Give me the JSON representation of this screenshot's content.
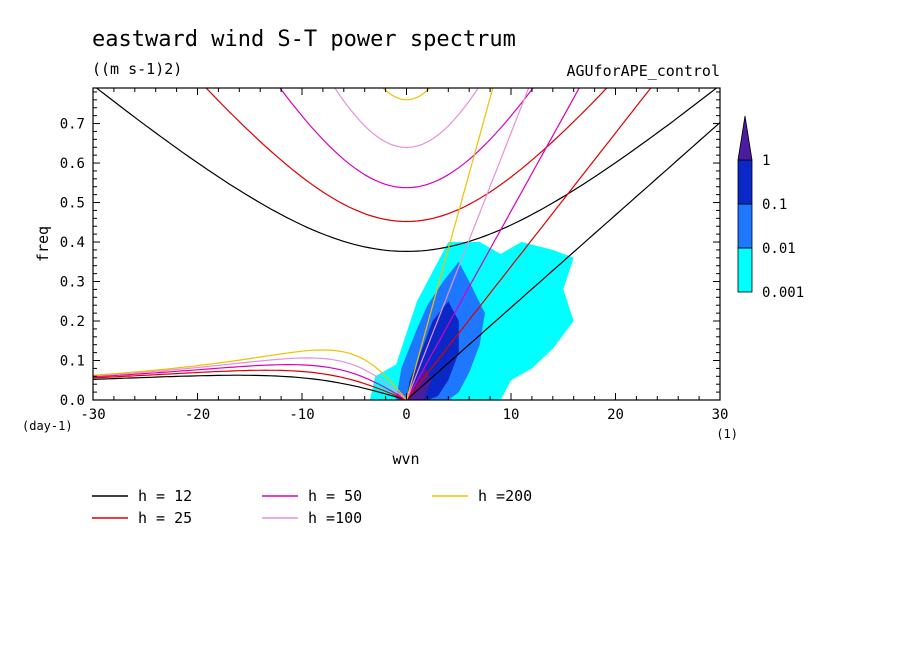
{
  "chart_data": {
    "type": "heatmap",
    "title": "eastward wind S-T power spectrum",
    "units_label": "((m s-1)2)",
    "experiment": "AGUforAPE_control",
    "xlabel": "wvn",
    "ylabel": "freq",
    "x_unit": "(1)",
    "y_unit": "(day-1)",
    "xlim": [
      -30,
      30
    ],
    "ylim": [
      0.0,
      0.79
    ],
    "xticks": [
      "-30",
      "-20",
      "-10",
      "0",
      "10",
      "20",
      "30"
    ],
    "xtick_values": [
      -30,
      -20,
      -10,
      0,
      10,
      20,
      30
    ],
    "yticks": [
      "0.0",
      "0.1",
      "0.2",
      "0.3",
      "0.4",
      "0.5",
      "0.6",
      "0.7"
    ],
    "ytick_values": [
      0.0,
      0.1,
      0.2,
      0.3,
      0.4,
      0.5,
      0.6,
      0.7
    ],
    "colorbar": {
      "levels": [
        "0.001",
        "0.01",
        "0.1",
        "1"
      ],
      "colors": [
        "#00ffff",
        "#1e78ff",
        "#0a28c8",
        "#4a1ca0"
      ]
    },
    "shaded_regions": [
      {
        "level": "0.001",
        "color": "#00ffff",
        "polygon": [
          [
            -3.5,
            0.0
          ],
          [
            -3,
            0.06
          ],
          [
            -1,
            0.09
          ],
          [
            1,
            0.25
          ],
          [
            3,
            0.35
          ],
          [
            4,
            0.4
          ],
          [
            7,
            0.4
          ],
          [
            9,
            0.37
          ],
          [
            11,
            0.4
          ],
          [
            14,
            0.38
          ],
          [
            16,
            0.36
          ],
          [
            15,
            0.28
          ],
          [
            16,
            0.2
          ],
          [
            14,
            0.13
          ],
          [
            12,
            0.08
          ],
          [
            10,
            0.05
          ],
          [
            9,
            0.0
          ]
        ]
      },
      {
        "level": "0.01",
        "color": "#1e78ff",
        "polygon": [
          [
            -1,
            0.0
          ],
          [
            -0.5,
            0.08
          ],
          [
            1,
            0.18
          ],
          [
            2,
            0.24
          ],
          [
            3.5,
            0.3
          ],
          [
            5,
            0.35
          ],
          [
            6,
            0.3
          ],
          [
            7.5,
            0.22
          ],
          [
            7,
            0.14
          ],
          [
            6,
            0.07
          ],
          [
            5,
            0.02
          ],
          [
            4,
            0.0
          ]
        ]
      },
      {
        "level": "0.1",
        "color": "#0a28c8",
        "polygon": [
          [
            0,
            0.0
          ],
          [
            0.3,
            0.05
          ],
          [
            1.5,
            0.13
          ],
          [
            2.5,
            0.2
          ],
          [
            4,
            0.25
          ],
          [
            5,
            0.2
          ],
          [
            5,
            0.12
          ],
          [
            4,
            0.05
          ],
          [
            3,
            0.01
          ],
          [
            2,
            0.0
          ]
        ]
      },
      {
        "level": "1",
        "color": "#4a1ca0",
        "polygon": [
          [
            0.2,
            0.0
          ],
          [
            0.8,
            0.04
          ],
          [
            1.8,
            0.08
          ],
          [
            2.4,
            0.05
          ],
          [
            1.6,
            0.0
          ]
        ]
      }
    ],
    "series": [
      {
        "name": "h = 12",
        "color": "#000000",
        "h": 12
      },
      {
        "name": "h = 25",
        "color": "#e00000",
        "h": 25
      },
      {
        "name": "h = 50",
        "color": "#d800c0",
        "h": 50
      },
      {
        "name": "h =100",
        "color": "#e890d8",
        "h": 100
      },
      {
        "name": "h =200",
        "color": "#f0c000",
        "h": 200
      }
    ],
    "legend_position": "bottom"
  }
}
